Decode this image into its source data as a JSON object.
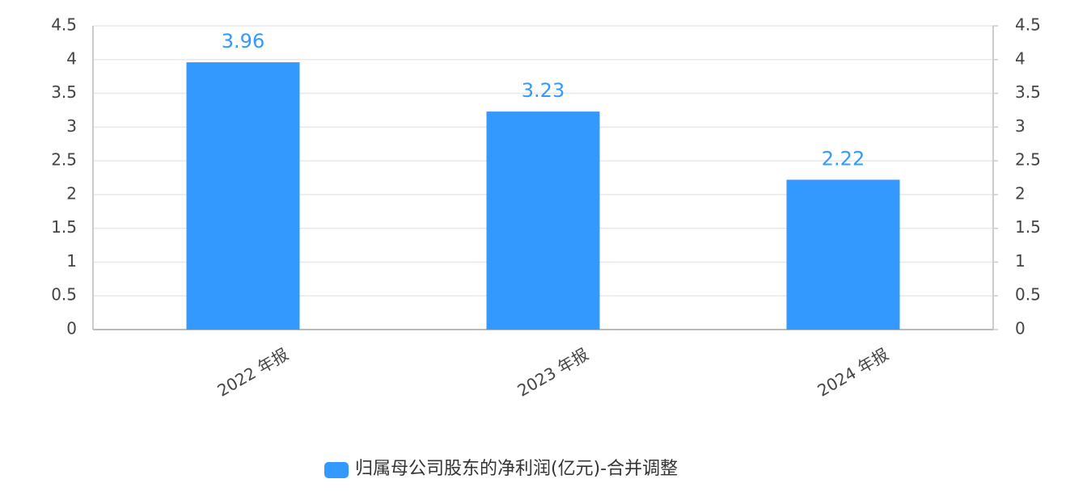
{
  "chart_data": {
    "type": "bar",
    "categories": [
      "2022 年报",
      "2023 年报",
      "2024 年报"
    ],
    "series": [
      {
        "name": "归属母公司股东的净利润(亿元)-合并调整",
        "color": "#3399ff",
        "values": [
          3.96,
          3.23,
          2.22
        ]
      }
    ],
    "ylim": [
      0,
      4.5
    ],
    "yticks": [
      0,
      0.5,
      1,
      1.5,
      2,
      2.5,
      3,
      3.5,
      4,
      4.5
    ],
    "y2lim": [
      0,
      4.5
    ],
    "y2ticks": [
      0,
      0.5,
      1,
      1.5,
      2,
      2.5,
      3,
      3.5,
      4,
      4.5
    ],
    "grid": true,
    "legend": "bottom"
  }
}
